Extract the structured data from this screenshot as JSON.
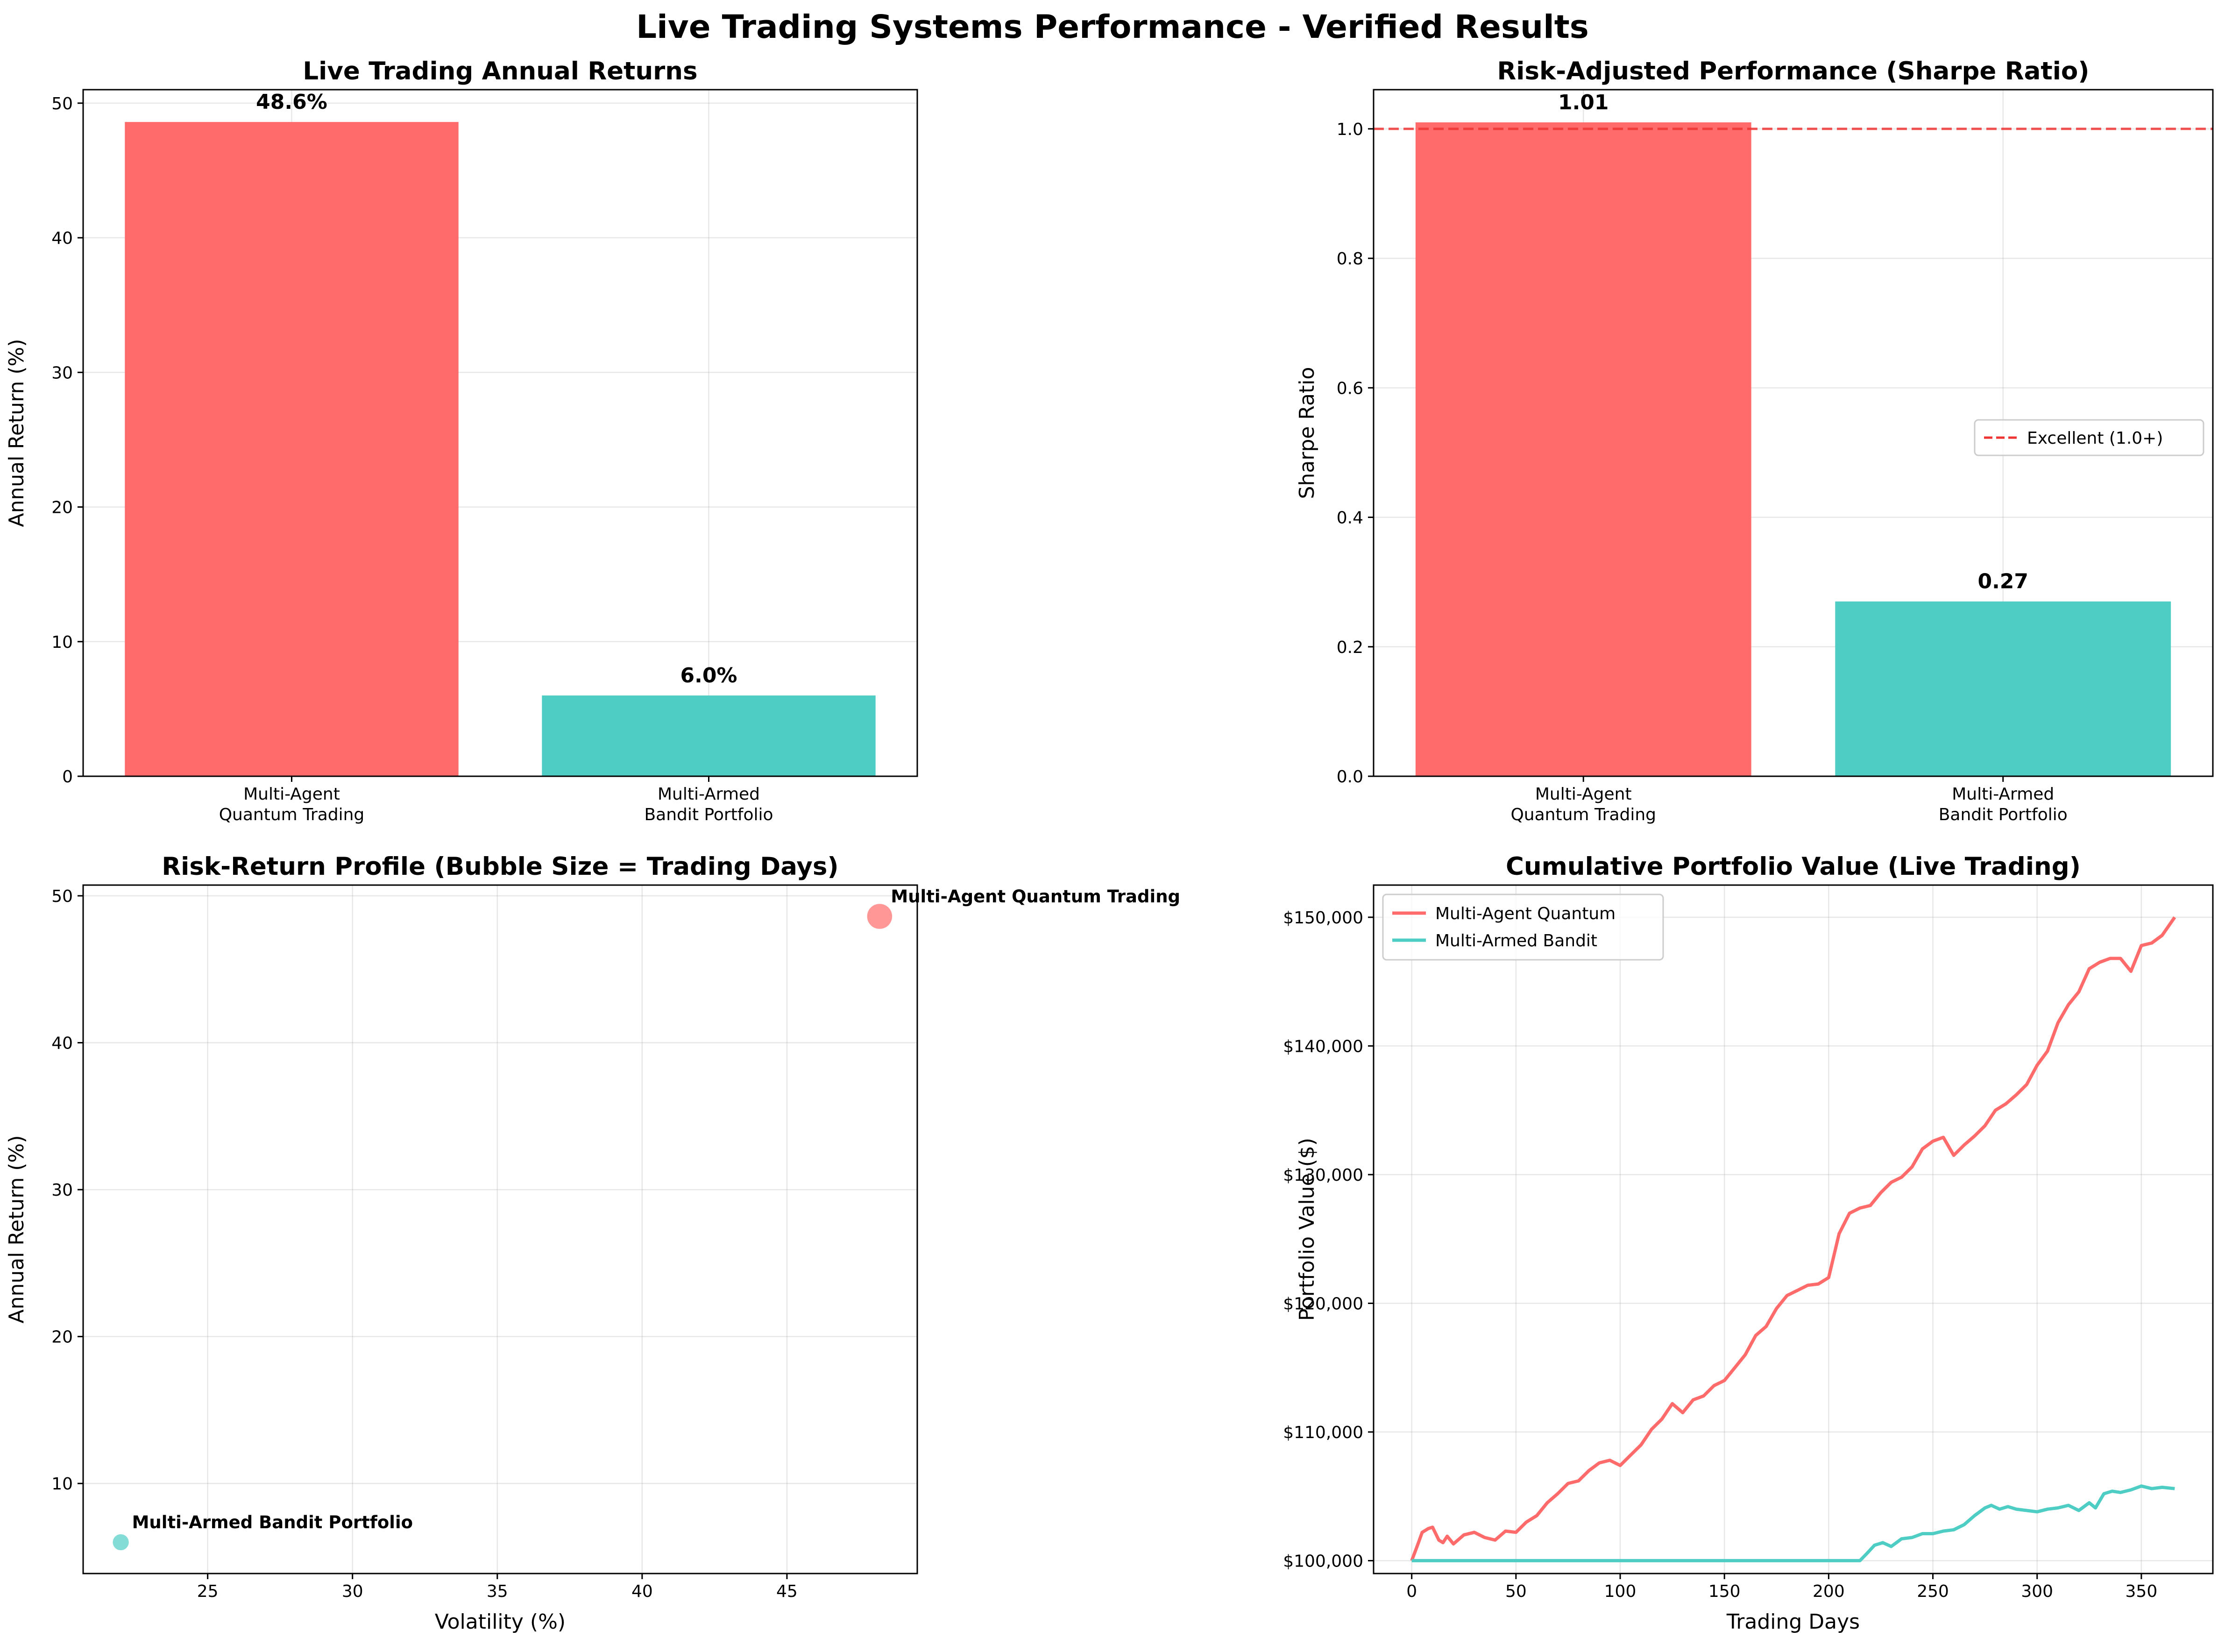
{
  "figure_title": "Live Trading Systems Performance - Verified Results",
  "colors": {
    "quantum": "#ff6b6b",
    "bandit": "#4ecdc4",
    "threshold": "#ee3333"
  },
  "chart_data": [
    {
      "id": "annual_returns",
      "type": "bar",
      "title": "Live Trading Annual Returns",
      "xlabel": "",
      "ylabel": "Annual Return (%)",
      "categories": [
        [
          "Multi-Agent",
          "Quantum Trading"
        ],
        [
          "Multi-Armed",
          "Bandit Portfolio"
        ]
      ],
      "values": [
        48.6,
        6.0
      ],
      "value_labels": [
        "48.6%",
        "6.0%"
      ],
      "ylim": [
        0,
        51
      ],
      "yticks": [
        "0",
        "10",
        "20",
        "30",
        "40",
        "50"
      ],
      "grid": true
    },
    {
      "id": "sharpe",
      "type": "bar",
      "title": "Risk-Adjusted Performance (Sharpe Ratio)",
      "xlabel": "",
      "ylabel": "Sharpe Ratio",
      "categories": [
        [
          "Multi-Agent",
          "Quantum Trading"
        ],
        [
          "Multi-Armed",
          "Bandit Portfolio"
        ]
      ],
      "values": [
        1.01,
        0.27
      ],
      "value_labels": [
        "1.01",
        "0.27"
      ],
      "ylim": [
        0,
        1.0605
      ],
      "yticks": [
        "0.0",
        "0.2",
        "0.4",
        "0.6",
        "0.8",
        "1.0"
      ],
      "reference_line": {
        "y": 1.0,
        "label": "Excellent (1.0+)",
        "style": "dashed"
      },
      "legend": "center-right",
      "grid": true
    },
    {
      "id": "risk_return",
      "type": "scatter",
      "title": "Risk-Return Profile (Bubble Size = Trading Days)",
      "xlabel": "Volatility (%)",
      "ylabel": "Annual Return (%)",
      "points": [
        {
          "label": "Multi-Agent Quantum Trading",
          "x": 48.2,
          "y": 48.6,
          "size_days": 366
        },
        {
          "label": "Multi-Armed Bandit Portfolio",
          "x": 22.0,
          "y": 6.0,
          "size_days": 150
        }
      ],
      "xlim": [
        20.7,
        49.5
      ],
      "ylim": [
        3.87,
        50.73
      ],
      "xticks": [
        "25",
        "30",
        "35",
        "40",
        "45"
      ],
      "yticks": [
        "10",
        "20",
        "30",
        "40",
        "50"
      ],
      "grid": true
    },
    {
      "id": "cumulative",
      "type": "line",
      "title": "Cumulative Portfolio Value (Live Trading)",
      "xlabel": "Trading Days",
      "ylabel": "Portfolio Value ($)",
      "xlim": [
        -18.3,
        384.3
      ],
      "ylim": [
        99000,
        152500
      ],
      "xticks": [
        "0",
        "50",
        "100",
        "150",
        "200",
        "250",
        "300",
        "350"
      ],
      "yticks": [
        "$100,000",
        "$110,000",
        "$120,000",
        "$130,000",
        "$140,000",
        "$150,000"
      ],
      "legend": "top-left",
      "grid": true,
      "series": [
        {
          "name": "Multi-Agent Quantum",
          "x": [
            0,
            3,
            5,
            8,
            10,
            13,
            15,
            17,
            20,
            25,
            30,
            35,
            40,
            45,
            50,
            55,
            60,
            65,
            70,
            75,
            80,
            85,
            90,
            95,
            100,
            105,
            110,
            115,
            120,
            125,
            130,
            135,
            140,
            145,
            150,
            155,
            160,
            165,
            170,
            175,
            180,
            185,
            190,
            195,
            200,
            205,
            210,
            215,
            220,
            225,
            230,
            235,
            240,
            245,
            250,
            255,
            260,
            265,
            270,
            275,
            280,
            285,
            290,
            295,
            300,
            305,
            310,
            315,
            320,
            325,
            330,
            335,
            340,
            345,
            350,
            355,
            360,
            366
          ],
          "y": [
            100000,
            101300,
            102200,
            102500,
            102600,
            101600,
            101400,
            101900,
            101300,
            102000,
            102200,
            101800,
            101600,
            102300,
            102200,
            103000,
            103500,
            104500,
            105200,
            106000,
            106200,
            107000,
            107600,
            107800,
            107400,
            108200,
            109000,
            110200,
            111000,
            112200,
            111500,
            112500,
            112800,
            113600,
            114000,
            115000,
            116000,
            117500,
            118200,
            119600,
            120600,
            121000,
            121400,
            121500,
            122000,
            125400,
            127000,
            127400,
            127600,
            128600,
            129400,
            129800,
            130600,
            132000,
            132600,
            132900,
            131500,
            132300,
            133000,
            133800,
            135000,
            135500,
            136200,
            137000,
            138500,
            139600,
            141800,
            143200,
            144200,
            146000,
            146500,
            146800,
            146800,
            145800,
            147800,
            148000,
            148600,
            150000
          ]
        },
        {
          "name": "Multi-Armed Bandit",
          "x": [
            0,
            215,
            218,
            222,
            226,
            230,
            235,
            240,
            245,
            250,
            255,
            260,
            265,
            270,
            275,
            278,
            282,
            286,
            290,
            295,
            300,
            305,
            310,
            315,
            320,
            325,
            328,
            332,
            336,
            340,
            345,
            350,
            355,
            360,
            366
          ],
          "y": [
            100000,
            100000,
            100500,
            101200,
            101400,
            101100,
            101700,
            101800,
            102100,
            102100,
            102300,
            102400,
            102800,
            103500,
            104100,
            104300,
            104000,
            104200,
            104000,
            103900,
            103800,
            104000,
            104100,
            104300,
            103900,
            104500,
            104100,
            105200,
            105400,
            105300,
            105500,
            105800,
            105600,
            105700,
            105600
          ]
        }
      ]
    }
  ]
}
